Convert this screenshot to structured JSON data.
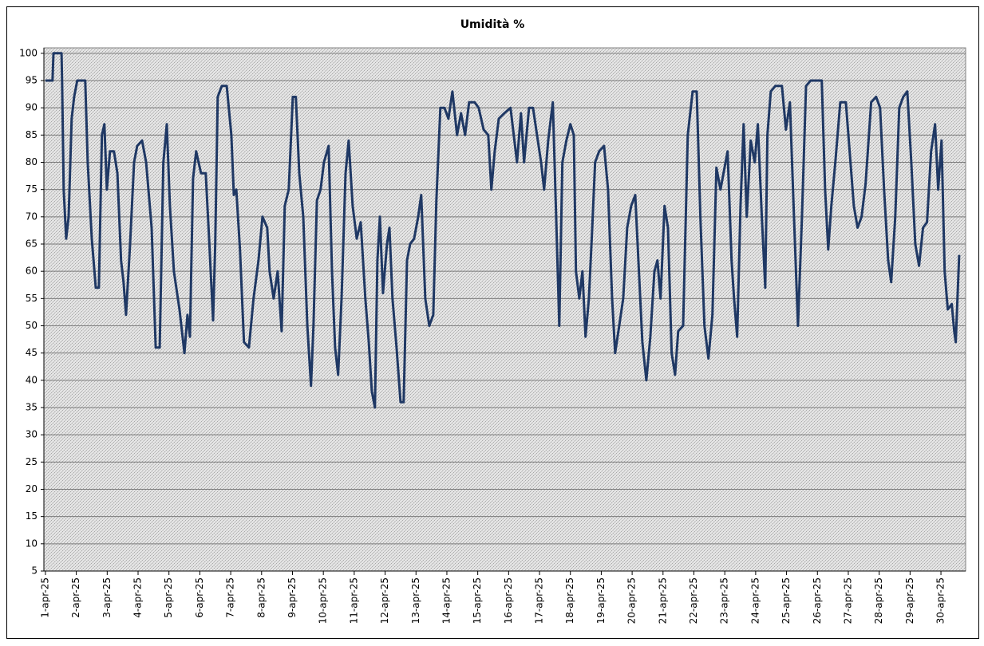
{
  "chart_data": {
    "type": "line",
    "title": "Umidità  %",
    "x": [
      0,
      0.23,
      0.26,
      0.52,
      0.54,
      0.59,
      0.67,
      0.75,
      0.85,
      0.93,
      1.03,
      1.29,
      1.37,
      1.5,
      1.63,
      1.73,
      1.83,
      1.91,
      1.99,
      2.09,
      2.22,
      2.33,
      2.45,
      2.53,
      2.61,
      2.74,
      2.87,
      2.97,
      3.13,
      3.26,
      3.44,
      3.57,
      3.7,
      3.82,
      3.93,
      4.03,
      4.16,
      4.34,
      4.5,
      4.6,
      4.68,
      4.78,
      4.88,
      5.04,
      5.19,
      5.3,
      5.43,
      5.5,
      5.58,
      5.71,
      5.87,
      6.02,
      6.1,
      6.18,
      6.3,
      6.43,
      6.59,
      6.74,
      6.9,
      7.03,
      7.18,
      7.26,
      7.39,
      7.52,
      7.65,
      7.75,
      7.88,
      8.01,
      8.11,
      8.22,
      8.35,
      8.48,
      8.6,
      8.68,
      8.79,
      8.91,
      9.02,
      9.17,
      9.28,
      9.38,
      9.48,
      9.59,
      9.72,
      9.82,
      9.95,
      10.08,
      10.21,
      10.36,
      10.47,
      10.57,
      10.67,
      10.75,
      10.83,
      10.93,
      11.06,
      11.14,
      11.24,
      11.37,
      11.5,
      11.6,
      11.71,
      11.81,
      11.94,
      12.07,
      12.17,
      12.3,
      12.43,
      12.56,
      12.66,
      12.79,
      12.92,
      13.05,
      13.18,
      13.33,
      13.46,
      13.59,
      13.72,
      13.9,
      14.03,
      14.19,
      14.34,
      14.44,
      14.55,
      14.68,
      14.86,
      15.06,
      15.27,
      15.4,
      15.5,
      15.66,
      15.79,
      15.92,
      16.05,
      16.15,
      16.28,
      16.43,
      16.54,
      16.64,
      16.74,
      16.87,
      17.0,
      17.11,
      17.18,
      17.29,
      17.39,
      17.49,
      17.6,
      17.7,
      17.8,
      17.93,
      18.09,
      18.22,
      18.35,
      18.45,
      18.58,
      18.71,
      18.84,
      18.97,
      19.1,
      19.22,
      19.33,
      19.46,
      19.59,
      19.72,
      19.82,
      19.92,
      20.05,
      20.16,
      20.28,
      20.39,
      20.49,
      20.65,
      20.8,
      20.96,
      21.09,
      21.21,
      21.34,
      21.47,
      21.6,
      21.73,
      21.86,
      21.96,
      22.09,
      22.22,
      22.3,
      22.4,
      22.51,
      22.61,
      22.71,
      22.84,
      22.97,
      23.07,
      23.2,
      23.31,
      23.38,
      23.49,
      23.64,
      23.85,
      23.98,
      24.11,
      24.24,
      24.37,
      24.5,
      24.63,
      24.78,
      25.14,
      25.25,
      25.35,
      25.45,
      25.58,
      25.74,
      25.92,
      26.07,
      26.18,
      26.3,
      26.43,
      26.56,
      26.74,
      26.9,
      27.03,
      27.16,
      27.29,
      27.39,
      27.52,
      27.65,
      27.78,
      27.91,
      28.04,
      28.17,
      28.29,
      28.42,
      28.55,
      28.68,
      28.81,
      28.91,
      29.02,
      29.12,
      29.22,
      29.35,
      29.43,
      29.48,
      29.59
    ],
    "series": [
      {
        "color": "#1f3864",
        "values": [
          95,
          95,
          100,
          100,
          95,
          75,
          66,
          70,
          88,
          92,
          95,
          95,
          80,
          66,
          57,
          57,
          85,
          87,
          75,
          82,
          82,
          78,
          62,
          58,
          52,
          65,
          80,
          83,
          84,
          80,
          68,
          46,
          46,
          80,
          87,
          72,
          60,
          53,
          45,
          52,
          48,
          77,
          82,
          78,
          78,
          66,
          51,
          65,
          92,
          94,
          94,
          85,
          74,
          75,
          64,
          47,
          46,
          55,
          62,
          70,
          68,
          60,
          55,
          60,
          49,
          72,
          75,
          92,
          92,
          78,
          70,
          50,
          39,
          50,
          73,
          75,
          80,
          83,
          60,
          46,
          41,
          55,
          78,
          84,
          72,
          66,
          69,
          55,
          47,
          38,
          35,
          62,
          70,
          56,
          65,
          68,
          55,
          46,
          36,
          36,
          62,
          65,
          66,
          70,
          74,
          55,
          50,
          52,
          73,
          90,
          90,
          88,
          93,
          85,
          89,
          85,
          91,
          91,
          90,
          86,
          85,
          75,
          82,
          88,
          89,
          90,
          80,
          89,
          80,
          90,
          90,
          85,
          80,
          75,
          84,
          91,
          70,
          50,
          80,
          84,
          87,
          85,
          60,
          55,
          60,
          48,
          55,
          67,
          80,
          82,
          83,
          75,
          55,
          45,
          50,
          55,
          68,
          72,
          74,
          60,
          47,
          40,
          48,
          60,
          62,
          55,
          72,
          68,
          45,
          41,
          49,
          50,
          85,
          93,
          93,
          70,
          50,
          44,
          52,
          79,
          75,
          78,
          82,
          62,
          55,
          48,
          72,
          87,
          70,
          84,
          80,
          87,
          70,
          57,
          85,
          93,
          94,
          94,
          86,
          91,
          70,
          50,
          70,
          94,
          95,
          95,
          75,
          64,
          72,
          80,
          91,
          91,
          80,
          72,
          68,
          70,
          76,
          91,
          92,
          90,
          75,
          62,
          58,
          70,
          90,
          92,
          93,
          80,
          65,
          61,
          68,
          69,
          82,
          87,
          75,
          84,
          60,
          53,
          54,
          49,
          47,
          63
        ]
      }
    ],
    "xlim": [
      -0.05,
      29.8
    ],
    "xticks": [
      {
        "value": 0,
        "label": "1-apr-25"
      },
      {
        "value": 1,
        "label": "2-apr-25"
      },
      {
        "value": 2,
        "label": "3-apr-25"
      },
      {
        "value": 3,
        "label": "4-apr-25"
      },
      {
        "value": 4,
        "label": "5-apr-25"
      },
      {
        "value": 5,
        "label": "6-apr-25"
      },
      {
        "value": 6,
        "label": "7-apr-25"
      },
      {
        "value": 7,
        "label": "8-apr-25"
      },
      {
        "value": 8,
        "label": "9-apr-25"
      },
      {
        "value": 9,
        "label": "10-apr-25"
      },
      {
        "value": 10,
        "label": "11-apr-25"
      },
      {
        "value": 11,
        "label": "12-apr-25"
      },
      {
        "value": 12,
        "label": "13-apr-25"
      },
      {
        "value": 13,
        "label": "14-apr-25"
      },
      {
        "value": 14,
        "label": "15-apr-25"
      },
      {
        "value": 15,
        "label": "16-apr-25"
      },
      {
        "value": 16,
        "label": "17-apr-25"
      },
      {
        "value": 17,
        "label": "18-apr-25"
      },
      {
        "value": 18,
        "label": "19-apr-25"
      },
      {
        "value": 19,
        "label": "20-apr-25"
      },
      {
        "value": 20,
        "label": "21-apr-25"
      },
      {
        "value": 21,
        "label": "22-apr-25"
      },
      {
        "value": 22,
        "label": "23-apr-25"
      },
      {
        "value": 23,
        "label": "24-apr-25"
      },
      {
        "value": 24,
        "label": "25-apr-25"
      },
      {
        "value": 25,
        "label": "26-apr-25"
      },
      {
        "value": 26,
        "label": "27-apr-25"
      },
      {
        "value": 27,
        "label": "28-apr-25"
      },
      {
        "value": 28,
        "label": "29-apr-25"
      },
      {
        "value": 29,
        "label": "30-apr-25"
      }
    ],
    "ylim": [
      5,
      101
    ],
    "yticks": [
      5,
      10,
      15,
      20,
      25,
      30,
      35,
      40,
      45,
      50,
      55,
      60,
      65,
      70,
      75,
      80,
      85,
      90,
      95,
      100
    ],
    "grid": true
  }
}
